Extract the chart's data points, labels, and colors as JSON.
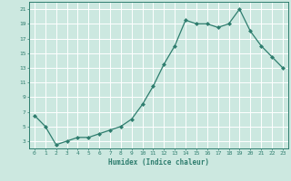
{
  "x": [
    0,
    1,
    2,
    3,
    4,
    5,
    6,
    7,
    8,
    9,
    10,
    11,
    12,
    13,
    14,
    15,
    16,
    17,
    18,
    19,
    20,
    21,
    22,
    23
  ],
  "y": [
    6.5,
    5.0,
    2.5,
    3.0,
    3.5,
    3.5,
    4.0,
    4.5,
    5.0,
    6.0,
    8.0,
    10.5,
    13.5,
    16.0,
    19.5,
    19.0,
    19.0,
    18.5,
    19.0,
    21.0,
    18.0,
    16.0,
    14.5,
    13.0
  ],
  "xlabel": "Humidex (Indice chaleur)",
  "line_color": "#2e7d6e",
  "bg_color": "#cce8e0",
  "grid_color": "#ffffff",
  "ylim": [
    2,
    22
  ],
  "xlim": [
    -0.5,
    23.5
  ],
  "yticks": [
    3,
    5,
    7,
    9,
    11,
    13,
    15,
    17,
    19,
    21
  ],
  "xticks": [
    0,
    1,
    2,
    3,
    4,
    5,
    6,
    7,
    8,
    9,
    10,
    11,
    12,
    13,
    14,
    15,
    16,
    17,
    18,
    19,
    20,
    21,
    22,
    23
  ]
}
